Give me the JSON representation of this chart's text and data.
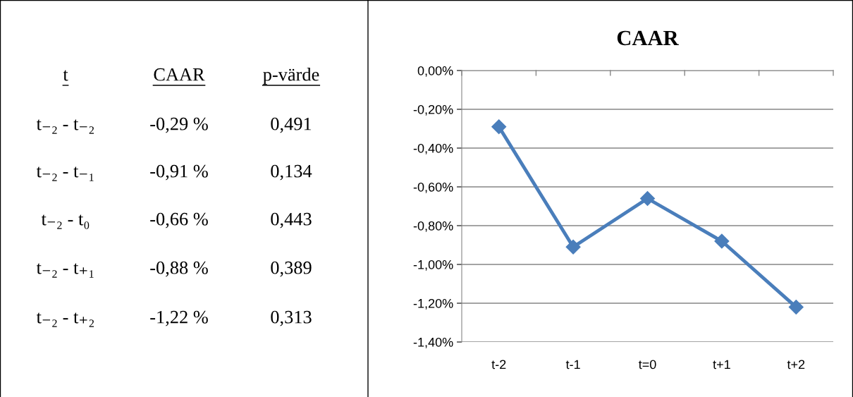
{
  "chart_data": [
    {
      "type": "other",
      "annotations": [
        "t",
        "CAAR",
        "p-värde",
        "t₋₂ - t₋₂",
        "-0,29 %",
        "0,491",
        "t₋₂ - t₋₁",
        "-0,91 %",
        "0,134",
        "t₋₂ - t₀",
        "-0,66 %",
        "0,443",
        "t₋₂ - t₊₁",
        "-0,88 %",
        "0,389",
        "t₋₂ - t₊₂",
        "-1,22 %",
        "0,313"
      ]
    },
    {
      "type": "line",
      "title": "CAAR",
      "categories": [
        "t-2",
        "t-1",
        "t=0",
        "t+1",
        "t+2"
      ],
      "series": [
        {
          "color": "#4a7ebb",
          "values": [
            -0.29,
            -0.91,
            -0.66,
            -0.88,
            -1.22
          ]
        }
      ],
      "ylim": [
        -1.4,
        0
      ],
      "yticks": [
        {
          "value": 0,
          "label": "0,00%"
        },
        {
          "value": -0.2,
          "label": "-0,20%"
        },
        {
          "value": -0.4,
          "label": "-0,40%"
        },
        {
          "value": -0.6,
          "label": "-0,60%"
        },
        {
          "value": -0.8,
          "label": "-0,80%"
        },
        {
          "value": -1.0,
          "label": "-1,00%"
        },
        {
          "value": -1.2,
          "label": "-1,20%"
        },
        {
          "value": -1.4,
          "label": "-1,40%"
        }
      ],
      "grid": "y",
      "marker": "diamond",
      "line_style": "solid",
      "legend": false
    }
  ]
}
